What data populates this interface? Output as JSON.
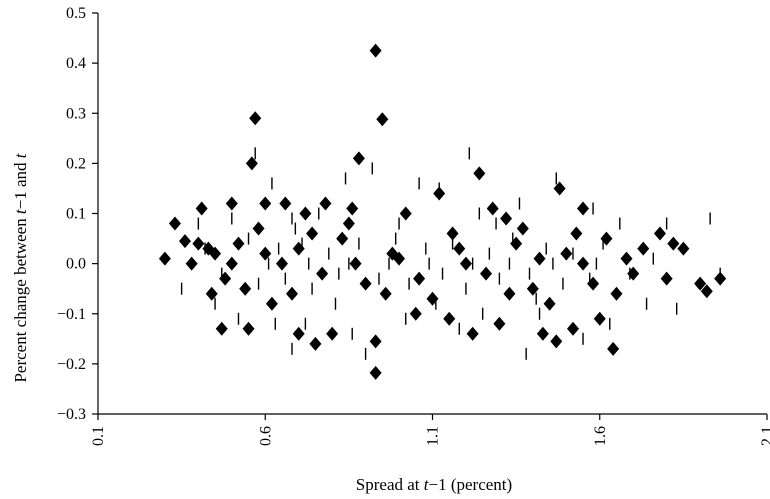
{
  "chart_data": {
    "type": "scatter",
    "title": "",
    "xlabel_parts": [
      "Spread at ",
      "t",
      "−1 (percent)"
    ],
    "ylabel_parts": [
      "Percent change between ",
      "t",
      "−1 and ",
      "t"
    ],
    "xlim": [
      0.1,
      2.1
    ],
    "ylim": [
      -0.3,
      0.5
    ],
    "x_ticks": [
      0.1,
      0.6,
      1.1,
      1.6,
      2.1
    ],
    "x_tick_labels": [
      "0.1",
      "0.6",
      "1.1",
      "1.6",
      "2.1"
    ],
    "y_ticks": [
      0.5,
      0.4,
      0.3,
      0.2,
      0.1,
      0.0,
      -0.1,
      -0.2,
      -0.3
    ],
    "y_tick_labels": [
      "0.5",
      "0.4",
      "0.3",
      "0.2",
      "0.1",
      "0.0",
      "−0.1",
      "−0.2",
      "−0.3"
    ],
    "grid": false,
    "legend": "none",
    "series": [
      {
        "marker": "diamond",
        "points": [
          [
            0.93,
            0.425
          ],
          [
            0.57,
            0.29
          ],
          [
            0.95,
            0.288
          ],
          [
            0.56,
            0.2
          ],
          [
            0.88,
            0.21
          ],
          [
            1.24,
            0.18
          ],
          [
            0.3,
            0.01
          ],
          [
            0.33,
            0.08
          ],
          [
            0.36,
            0.045
          ],
          [
            0.4,
            0.04
          ],
          [
            0.43,
            0.03
          ],
          [
            0.45,
            0.02
          ],
          [
            0.41,
            0.11
          ],
          [
            0.44,
            -0.06
          ],
          [
            0.47,
            -0.13
          ],
          [
            0.55,
            -0.13
          ],
          [
            0.5,
            0.12
          ],
          [
            0.6,
            0.12
          ],
          [
            0.66,
            0.12
          ],
          [
            0.72,
            0.1
          ],
          [
            0.78,
            0.12
          ],
          [
            0.86,
            0.11
          ],
          [
            1.02,
            0.1
          ],
          [
            1.12,
            0.14
          ],
          [
            1.28,
            0.11
          ],
          [
            1.32,
            0.09
          ],
          [
            1.48,
            0.15
          ],
          [
            1.55,
            0.11
          ],
          [
            0.62,
            -0.08
          ],
          [
            0.7,
            -0.14
          ],
          [
            0.75,
            -0.16
          ],
          [
            0.8,
            -0.14
          ],
          [
            0.93,
            -0.155
          ],
          [
            0.93,
            -0.218
          ],
          [
            1.05,
            -0.1
          ],
          [
            1.15,
            -0.11
          ],
          [
            1.22,
            -0.14
          ],
          [
            1.3,
            -0.12
          ],
          [
            1.43,
            -0.14
          ],
          [
            1.47,
            -0.155
          ],
          [
            1.52,
            -0.13
          ],
          [
            1.6,
            -0.11
          ],
          [
            1.64,
            -0.17
          ],
          [
            1.65,
            -0.06
          ],
          [
            1.73,
            0.03
          ],
          [
            1.78,
            0.06
          ],
          [
            1.82,
            0.04
          ],
          [
            1.9,
            -0.04
          ],
          [
            1.92,
            -0.055
          ],
          [
            1.96,
            -0.03
          ],
          [
            1.85,
            0.03
          ],
          [
            1.8,
            -0.03
          ],
          [
            0.38,
            0.0
          ],
          [
            0.48,
            -0.03
          ],
          [
            0.52,
            0.04
          ],
          [
            0.65,
            0.0
          ],
          [
            0.7,
            0.03
          ],
          [
            0.77,
            -0.02
          ],
          [
            0.83,
            0.05
          ],
          [
            0.9,
            -0.04
          ],
          [
            0.98,
            0.02
          ],
          [
            1.06,
            -0.03
          ],
          [
            1.18,
            0.03
          ],
          [
            1.26,
            -0.02
          ],
          [
            1.35,
            0.04
          ],
          [
            1.4,
            -0.05
          ],
          [
            1.5,
            0.02
          ],
          [
            1.58,
            -0.04
          ],
          [
            1.68,
            0.01
          ],
          [
            1.7,
            -0.02
          ],
          [
            0.58,
            0.07
          ],
          [
            0.68,
            -0.06
          ],
          [
            0.85,
            0.08
          ],
          [
            1.1,
            -0.07
          ],
          [
            1.37,
            0.07
          ],
          [
            1.45,
            -0.08
          ],
          [
            1.62,
            0.05
          ],
          [
            0.5,
            0.0
          ],
          [
            0.6,
            0.02
          ],
          [
            0.87,
            0.0
          ],
          [
            1.0,
            0.01
          ],
          [
            1.2,
            0.0
          ],
          [
            1.42,
            0.01
          ],
          [
            1.55,
            0.0
          ],
          [
            0.54,
            -0.05
          ],
          [
            0.74,
            0.06
          ],
          [
            0.96,
            -0.06
          ],
          [
            1.16,
            0.06
          ],
          [
            1.33,
            -0.06
          ],
          [
            1.53,
            0.06
          ]
        ]
      },
      {
        "marker": "vertical-dash",
        "points": [
          [
            0.57,
            0.22
          ],
          [
            1.21,
            0.22
          ],
          [
            0.62,
            0.16
          ],
          [
            0.84,
            0.17
          ],
          [
            0.92,
            0.19
          ],
          [
            1.06,
            0.16
          ],
          [
            1.12,
            0.15
          ],
          [
            1.47,
            0.17
          ],
          [
            1.93,
            0.09
          ],
          [
            0.4,
            0.08
          ],
          [
            0.5,
            0.09
          ],
          [
            0.68,
            0.09
          ],
          [
            0.76,
            0.1
          ],
          [
            1.24,
            0.1
          ],
          [
            1.36,
            0.12
          ],
          [
            1.58,
            0.11
          ],
          [
            1.66,
            0.08
          ],
          [
            1.8,
            0.08
          ],
          [
            0.35,
            -0.05
          ],
          [
            0.45,
            -0.08
          ],
          [
            0.52,
            -0.11
          ],
          [
            0.63,
            -0.12
          ],
          [
            0.68,
            -0.17
          ],
          [
            0.72,
            -0.12
          ],
          [
            0.86,
            -0.14
          ],
          [
            0.9,
            -0.18
          ],
          [
            1.02,
            -0.11
          ],
          [
            1.18,
            -0.13
          ],
          [
            1.25,
            -0.1
          ],
          [
            1.38,
            -0.18
          ],
          [
            1.42,
            -0.1
          ],
          [
            1.55,
            -0.15
          ],
          [
            1.63,
            -0.12
          ],
          [
            1.74,
            -0.08
          ],
          [
            1.83,
            -0.09
          ],
          [
            1.96,
            -0.02
          ],
          [
            0.42,
            0.03
          ],
          [
            0.47,
            -0.02
          ],
          [
            0.55,
            0.05
          ],
          [
            0.58,
            -0.04
          ],
          [
            0.64,
            0.03
          ],
          [
            0.66,
            -0.03
          ],
          [
            0.71,
            0.04
          ],
          [
            0.74,
            -0.05
          ],
          [
            0.79,
            0.02
          ],
          [
            0.82,
            -0.02
          ],
          [
            0.88,
            0.04
          ],
          [
            0.94,
            -0.03
          ],
          [
            0.99,
            0.05
          ],
          [
            1.03,
            -0.04
          ],
          [
            1.08,
            0.03
          ],
          [
            1.13,
            -0.02
          ],
          [
            1.16,
            0.04
          ],
          [
            1.2,
            -0.05
          ],
          [
            1.27,
            0.02
          ],
          [
            1.3,
            -0.03
          ],
          [
            1.34,
            0.05
          ],
          [
            1.39,
            -0.02
          ],
          [
            1.44,
            0.03
          ],
          [
            1.49,
            -0.04
          ],
          [
            1.52,
            0.02
          ],
          [
            1.57,
            -0.03
          ],
          [
            1.61,
            0.04
          ],
          [
            1.69,
            -0.02
          ],
          [
            1.76,
            0.01
          ],
          [
            0.61,
            0.0
          ],
          [
            0.73,
            0.0
          ],
          [
            0.85,
            0.0
          ],
          [
            0.97,
            0.0
          ],
          [
            1.09,
            0.0
          ],
          [
            1.22,
            0.0
          ],
          [
            1.33,
            0.0
          ],
          [
            1.46,
            0.0
          ],
          [
            1.59,
            0.0
          ],
          [
            0.69,
            0.07
          ],
          [
            0.81,
            -0.08
          ],
          [
            1.0,
            0.08
          ],
          [
            1.11,
            -0.08
          ],
          [
            1.29,
            0.08
          ],
          [
            1.41,
            -0.07
          ]
        ]
      }
    ]
  }
}
